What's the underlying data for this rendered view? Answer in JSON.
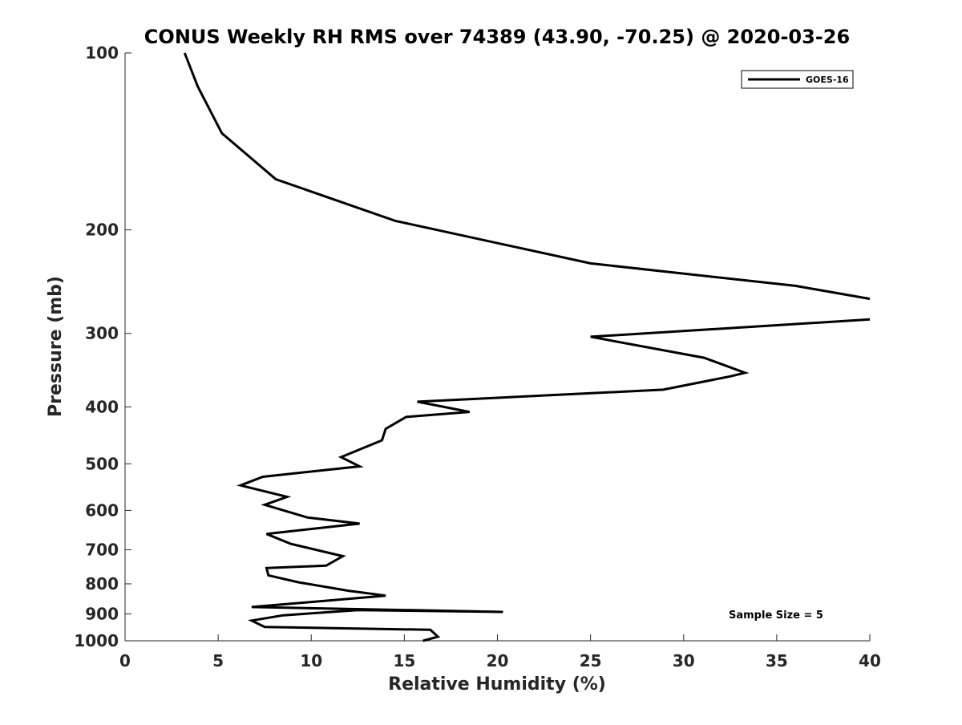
{
  "chart_data": {
    "type": "line",
    "title": "CONUS Weekly RH RMS over 74389 (43.90, -70.25) @ 2020-03-26",
    "xlabel": "Relative Humidity (%)",
    "ylabel": "Pressure (mb)",
    "xlim": [
      0,
      40
    ],
    "ylim": [
      100,
      1000
    ],
    "y_scale": "log",
    "y_reversed": true,
    "x_ticks": [
      "0",
      "5",
      "10",
      "15",
      "20",
      "25",
      "30",
      "35",
      "40"
    ],
    "y_ticks": [
      "100",
      "200",
      "300",
      "400",
      "500",
      "600",
      "700",
      "800",
      "900",
      "1000"
    ],
    "grid": false,
    "legend_position": "top-right",
    "annotation": "Sample Size = 5",
    "series": [
      {
        "name": "GOES-16",
        "color": "#000000",
        "x": [
          3.2,
          3.9,
          5.2,
          8.1,
          14.5,
          25.0,
          36.0,
          40.0,
          null,
          40.0,
          25.0,
          31.1,
          33.3,
          32.5,
          28.9,
          15.7,
          18.5,
          15.1,
          14.0,
          13.8,
          11.6,
          12.6,
          7.4,
          6.2,
          8.7,
          7.5,
          9.8,
          12.6,
          7.6,
          8.9,
          11.7,
          10.8,
          7.6,
          7.7,
          9.3,
          12.0,
          14.0,
          6.8,
          20.3,
          12.5,
          8.5,
          6.8,
          7.5,
          16.4,
          16.8,
          16.0
        ],
        "y": [
          100,
          114,
          137,
          164,
          193,
          228,
          249,
          262,
          null,
          284,
          304,
          330,
          350,
          355,
          374,
          392,
          408,
          416,
          436,
          456,
          487,
          505,
          526,
          544,
          569,
          587,
          617,
          632,
          658,
          684,
          718,
          745,
          752,
          774,
          795,
          822,
          838,
          876,
          893,
          887,
          905,
          924,
          947,
          958,
          984,
          1000
        ]
      }
    ]
  }
}
